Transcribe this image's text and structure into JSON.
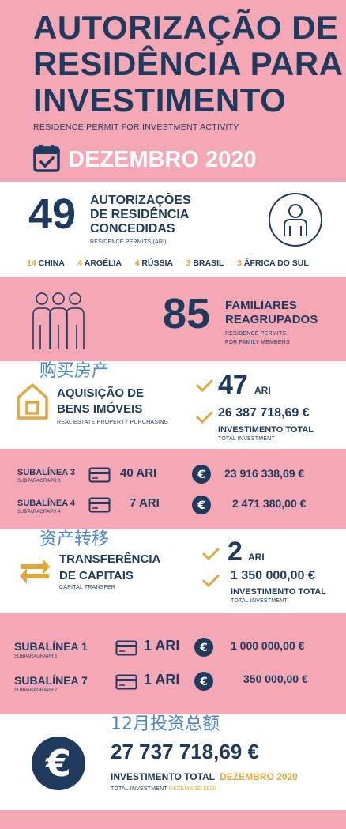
{
  "header": {
    "title_line1": "AUTORIZAÇÃO DE",
    "title_line2": "RESIDÊNCIA PARA",
    "title_line3": "INVESTIMENTO",
    "subtitle": "RESIDENCE PERMIT FOR INVESTMENT ACTIVITY",
    "month": "DEZEMBRO 2020"
  },
  "permits": {
    "count": "49",
    "label_line1": "AUTORIZAÇÕES",
    "label_line2": "DE RESIDÊNCIA",
    "label_line3": "CONCEDIDAS",
    "sublabel": "RESIDENCE PERMITS (ARI)",
    "countries": [
      {
        "num": "14",
        "name": "CHINA"
      },
      {
        "num": "4",
        "name": "ARGÉLIA"
      },
      {
        "num": "4",
        "name": "RÚSSIA"
      },
      {
        "num": "3",
        "name": "BRASIL"
      },
      {
        "num": "3",
        "name": "ÁFRICA DO SUL"
      }
    ]
  },
  "family": {
    "count": "85",
    "label_line1": "FAMILIARES",
    "label_line2": "REAGRUPADOS",
    "sub_line1": "RESIDENCE PERMITS",
    "sub_line2": "FOR FAMILY MEMBERS"
  },
  "property": {
    "cjk_note": "购买房产",
    "title_line1": "AQUISIÇÃO DE",
    "title_line2": "BENS IMÓVEIS",
    "sub": "REAL ESTATE PROPERTY PURCHASING",
    "count": "47",
    "count_unit": "ARI",
    "amount": "26 387 718,69 €",
    "amount_label": "INVESTIMENTO TOTAL",
    "amount_sub": "TOTAL INVESTMENT"
  },
  "property_breakdown": [
    {
      "label": "SUBALÍNEA 3",
      "sub": "SUBPARAGRAPH 3",
      "ari": "40 ARI",
      "amount": "23 916 338,69 €"
    },
    {
      "label": "SUBALÍNEA 4",
      "sub": "SUBPARAGRAPH 4",
      "ari": "7 ARI",
      "amount": "2 471 380,00 €"
    }
  ],
  "capital": {
    "cjk_note": "资产转移",
    "title_line1": "TRANSFERÊNCIA",
    "title_line2": "DE CAPITAIS",
    "sub": "CAPITAL TRANSFER",
    "count": "2",
    "count_unit": "ARI",
    "amount": "1 350 000,00 €",
    "amount_label": "INVESTIMENTO TOTAL",
    "amount_sub": "TOTAL INVESTMENT"
  },
  "capital_breakdown": [
    {
      "label": "SUBALÍNEA 1",
      "sub": "SUBPARAGRAPH 1",
      "ari": "1 ARI",
      "amount": "1 000 000,00 €"
    },
    {
      "label": "SUBALÍNEA 7",
      "sub": "SUBPARAGRAPH 7",
      "ari": "1 ARI",
      "amount": "350 000,00 €"
    }
  ],
  "total": {
    "cjk_note": "12月投资总额",
    "amount": "27 737 718,69 €",
    "label": "INVESTIMENTO TOTAL",
    "label_month": "DEZEMBRO 2020",
    "sub": "TOTAL INVESTMENT",
    "sub_month": "DEZEMBRO 2020",
    "euro_symbol": "€"
  },
  "colors": {
    "pink": "#f4a7b4",
    "navy": "#1f3a5c",
    "gold": "#e0a640"
  }
}
